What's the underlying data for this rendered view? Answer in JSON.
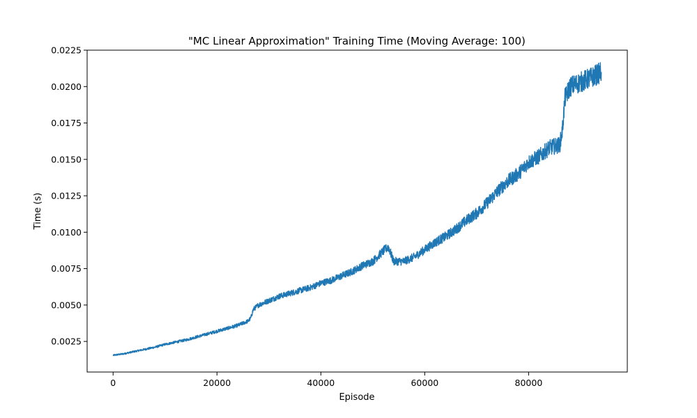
{
  "chart_data": {
    "type": "line",
    "title": "\"MC Linear Approximation\" Training Time (Moving Average: 100)",
    "xlabel": "Episode",
    "ylabel": "Time (s)",
    "xlim": [
      -5000,
      99000
    ],
    "ylim": [
      0.0004,
      0.0225
    ],
    "x_ticks": [
      {
        "value": 0,
        "label": "0"
      },
      {
        "value": 20000,
        "label": "20000"
      },
      {
        "value": 40000,
        "label": "40000"
      },
      {
        "value": 60000,
        "label": "60000"
      },
      {
        "value": 80000,
        "label": "80000"
      }
    ],
    "y_ticks": [
      {
        "value": 0.0025,
        "label": "0.0025"
      },
      {
        "value": 0.005,
        "label": "0.0050"
      },
      {
        "value": 0.0075,
        "label": "0.0075"
      },
      {
        "value": 0.01,
        "label": "0.0100"
      },
      {
        "value": 0.0125,
        "label": "0.0125"
      },
      {
        "value": 0.015,
        "label": "0.0150"
      },
      {
        "value": 0.0175,
        "label": "0.0175"
      },
      {
        "value": 0.02,
        "label": "0.0200"
      },
      {
        "value": 0.0225,
        "label": "0.0225"
      }
    ],
    "grid": false,
    "legend": "none",
    "series": [
      {
        "color": "#1f77b4",
        "x": [
          0,
          2000,
          4000,
          6000,
          8000,
          10000,
          12000,
          14000,
          16000,
          18000,
          20000,
          22000,
          24000,
          26000,
          26500,
          27000,
          28000,
          30000,
          32000,
          34000,
          36000,
          38000,
          40000,
          42000,
          44000,
          46000,
          48000,
          50000,
          52000,
          53000,
          54000,
          56000,
          58000,
          60000,
          62000,
          64000,
          66000,
          68000,
          70000,
          72000,
          74000,
          76000,
          78000,
          80000,
          82000,
          84000,
          86000,
          86500,
          87000,
          88000,
          90000,
          92000,
          94000
        ],
        "y": [
          0.00155,
          0.00165,
          0.0018,
          0.00195,
          0.0021,
          0.0023,
          0.00245,
          0.0026,
          0.0028,
          0.003,
          0.0032,
          0.0034,
          0.0036,
          0.0039,
          0.0041,
          0.0047,
          0.005,
          0.0053,
          0.0056,
          0.0058,
          0.006,
          0.0062,
          0.0065,
          0.0067,
          0.007,
          0.0073,
          0.0077,
          0.008,
          0.0087,
          0.009,
          0.008,
          0.008,
          0.0083,
          0.0088,
          0.0093,
          0.0097,
          0.0102,
          0.0108,
          0.0113,
          0.012,
          0.0128,
          0.0135,
          0.014,
          0.0148,
          0.0152,
          0.0158,
          0.016,
          0.017,
          0.0192,
          0.02,
          0.0203,
          0.0206,
          0.021
        ]
      }
    ]
  }
}
